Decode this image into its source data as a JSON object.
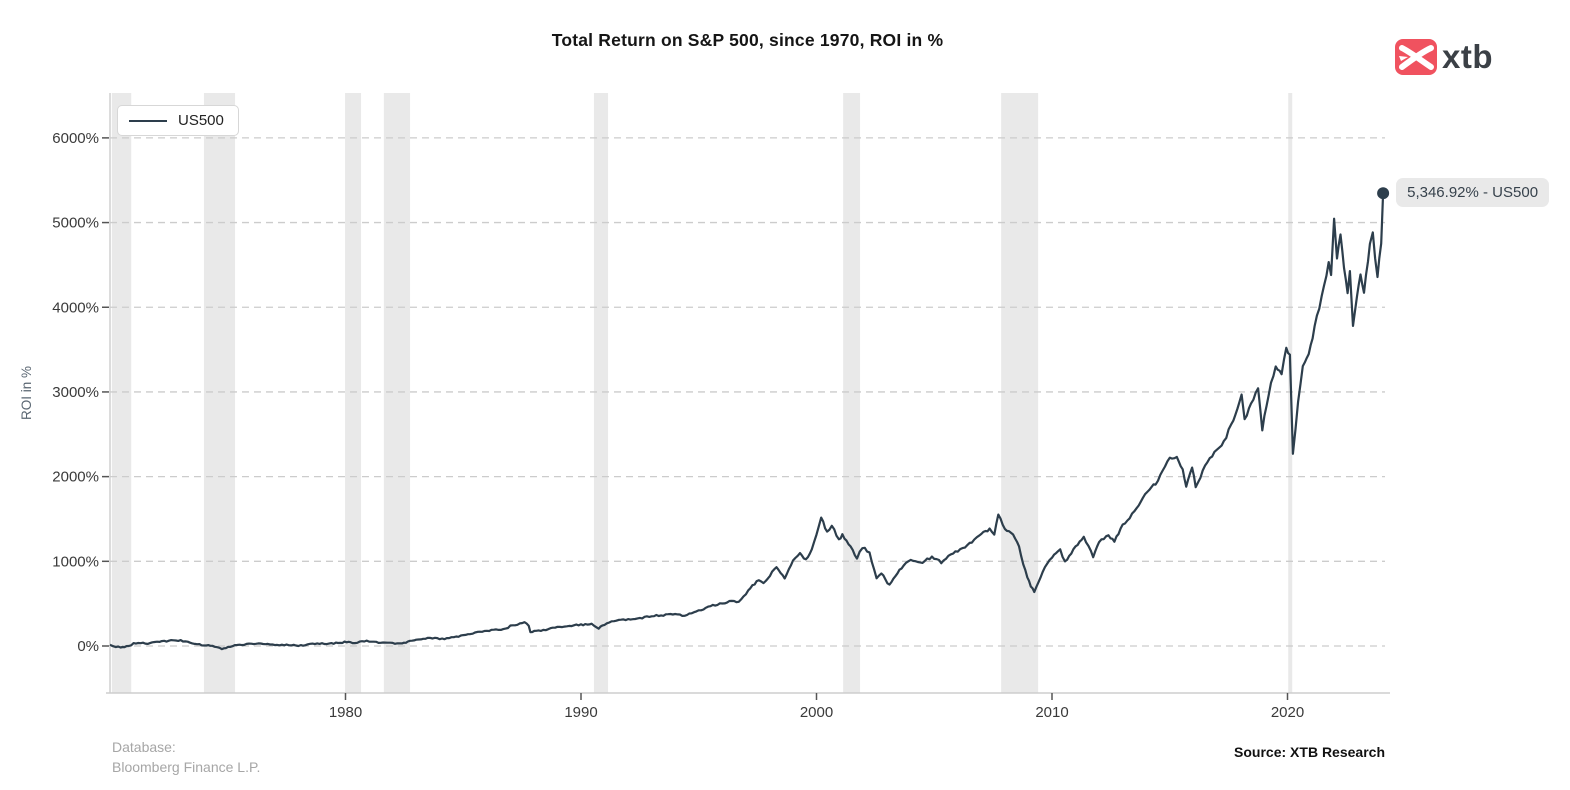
{
  "header": {
    "logo_text": "xtb"
  },
  "footer": {
    "database_line1": "Database:",
    "database_line2": "Bloomberg Finance L.P.",
    "source": "Source: XTB Research"
  },
  "colors": {
    "line": "#2d3e4c",
    "band": "#e9e9e9",
    "grid": "#cccccc",
    "axis_line": "#cdcdcd",
    "tick_mark": "#555555",
    "tick_text": "#3a3a3a",
    "pill_bg": "#e9e9e9",
    "pill_text": "#37424c",
    "logo_red": "#f0525f",
    "background": "#ffffff"
  },
  "chart_data": {
    "type": "line",
    "title": "Total Return on S&P 500, since 1970, ROI in %",
    "ylabel": "ROI in %",
    "xlabel": "",
    "grid": "dashed-horizontal",
    "legend_position": "top-left",
    "x_ticks": [
      1980,
      1990,
      2000,
      2010,
      2020
    ],
    "y_ticks": [
      0,
      1000,
      2000,
      3000,
      4000,
      5000,
      6000
    ],
    "y_tick_suffix": "%",
    "xlim": [
      1970,
      2024.14
    ],
    "ylim": [
      -555,
      6530
    ],
    "last_value": 5346.92,
    "last_value_label": "5,346.92% - US500",
    "recession_bands": [
      [
        1970.08,
        1970.9
      ],
      [
        1973.99,
        1975.31
      ],
      [
        1979.98,
        1980.66
      ],
      [
        1981.63,
        1982.74
      ],
      [
        1990.55,
        1991.15
      ],
      [
        2001.13,
        2001.85
      ],
      [
        2007.84,
        2009.41
      ],
      [
        2020.03,
        2020.2
      ]
    ],
    "series": [
      {
        "name": "US500",
        "points": [
          [
            1970.0,
            5
          ],
          [
            1970.15,
            -10
          ],
          [
            1970.45,
            -28
          ],
          [
            1970.7,
            -12
          ],
          [
            1971.0,
            28
          ],
          [
            1971.3,
            40
          ],
          [
            1971.6,
            30
          ],
          [
            1971.9,
            45
          ],
          [
            1972.3,
            50
          ],
          [
            1972.9,
            65
          ],
          [
            1973.2,
            50
          ],
          [
            1973.6,
            35
          ],
          [
            1974.0,
            20
          ],
          [
            1974.35,
            5
          ],
          [
            1974.75,
            -35
          ],
          [
            1975.1,
            -5
          ],
          [
            1975.5,
            15
          ],
          [
            1976.0,
            30
          ],
          [
            1976.5,
            38
          ],
          [
            1977.0,
            25
          ],
          [
            1977.5,
            20
          ],
          [
            1978.2,
            12
          ],
          [
            1978.6,
            22
          ],
          [
            1979.0,
            28
          ],
          [
            1979.5,
            38
          ],
          [
            1980.05,
            45
          ],
          [
            1980.3,
            32
          ],
          [
            1980.9,
            60
          ],
          [
            1981.3,
            55
          ],
          [
            1981.8,
            45
          ],
          [
            1982.4,
            30
          ],
          [
            1982.65,
            40
          ],
          [
            1983.0,
            70
          ],
          [
            1983.5,
            92
          ],
          [
            1984.1,
            80
          ],
          [
            1984.6,
            90
          ],
          [
            1985.0,
            115
          ],
          [
            1985.5,
            140
          ],
          [
            1986.0,
            175
          ],
          [
            1986.3,
            195
          ],
          [
            1986.7,
            190
          ],
          [
            1987.0,
            230
          ],
          [
            1987.6,
            272
          ],
          [
            1987.78,
            235
          ],
          [
            1987.85,
            160
          ],
          [
            1988.1,
            170
          ],
          [
            1988.5,
            185
          ],
          [
            1989.0,
            215
          ],
          [
            1989.5,
            248
          ],
          [
            1990.0,
            258
          ],
          [
            1990.45,
            268
          ],
          [
            1990.75,
            222
          ],
          [
            1991.0,
            262
          ],
          [
            1991.3,
            295
          ],
          [
            1992.0,
            318
          ],
          [
            1992.5,
            330
          ],
          [
            1993.0,
            348
          ],
          [
            1993.6,
            360
          ],
          [
            1994.1,
            372
          ],
          [
            1994.4,
            352
          ],
          [
            1995.0,
            412
          ],
          [
            1995.5,
            465
          ],
          [
            1996.0,
            490
          ],
          [
            1996.4,
            545
          ],
          [
            1996.7,
            530
          ],
          [
            1997.1,
            650
          ],
          [
            1997.55,
            790
          ],
          [
            1997.75,
            735
          ],
          [
            1998.3,
            935
          ],
          [
            1998.65,
            795
          ],
          [
            1999.0,
            1030
          ],
          [
            1999.3,
            1110
          ],
          [
            1999.55,
            1015
          ],
          [
            1999.8,
            1130
          ],
          [
            2000.2,
            1520
          ],
          [
            2000.45,
            1350
          ],
          [
            2000.65,
            1430
          ],
          [
            2000.95,
            1255
          ],
          [
            2001.1,
            1310
          ],
          [
            2001.45,
            1190
          ],
          [
            2001.72,
            1050
          ],
          [
            2001.95,
            1170
          ],
          [
            2002.25,
            1095
          ],
          [
            2002.55,
            790
          ],
          [
            2002.75,
            870
          ],
          [
            2003.1,
            730
          ],
          [
            2003.35,
            840
          ],
          [
            2003.7,
            960
          ],
          [
            2004.0,
            1020
          ],
          [
            2004.4,
            985
          ],
          [
            2004.9,
            1060
          ],
          [
            2005.3,
            1000
          ],
          [
            2005.8,
            1110
          ],
          [
            2006.3,
            1180
          ],
          [
            2006.6,
            1230
          ],
          [
            2007.0,
            1330
          ],
          [
            2007.35,
            1390
          ],
          [
            2007.55,
            1340
          ],
          [
            2007.72,
            1560
          ],
          [
            2008.0,
            1400
          ],
          [
            2008.35,
            1330
          ],
          [
            2008.6,
            1180
          ],
          [
            2008.78,
            950
          ],
          [
            2008.95,
            820
          ],
          [
            2009.1,
            700
          ],
          [
            2009.25,
            640
          ],
          [
            2009.6,
            880
          ],
          [
            2010.0,
            1060
          ],
          [
            2010.35,
            1150
          ],
          [
            2010.55,
            1010
          ],
          [
            2011.0,
            1190
          ],
          [
            2011.35,
            1280
          ],
          [
            2011.75,
            1050
          ],
          [
            2012.0,
            1230
          ],
          [
            2012.4,
            1290
          ],
          [
            2012.65,
            1240
          ],
          [
            2013.0,
            1420
          ],
          [
            2013.5,
            1580
          ],
          [
            2013.95,
            1790
          ],
          [
            2014.4,
            1920
          ],
          [
            2014.9,
            2200
          ],
          [
            2015.3,
            2240
          ],
          [
            2015.55,
            2080
          ],
          [
            2015.7,
            1900
          ],
          [
            2015.95,
            2140
          ],
          [
            2016.1,
            1880
          ],
          [
            2016.5,
            2160
          ],
          [
            2016.9,
            2300
          ],
          [
            2017.3,
            2450
          ],
          [
            2017.7,
            2680
          ],
          [
            2018.05,
            3000
          ],
          [
            2018.18,
            2690
          ],
          [
            2018.45,
            2860
          ],
          [
            2018.75,
            3060
          ],
          [
            2018.93,
            2550
          ],
          [
            2019.2,
            2950
          ],
          [
            2019.5,
            3280
          ],
          [
            2019.75,
            3230
          ],
          [
            2019.95,
            3530
          ],
          [
            2020.1,
            3440
          ],
          [
            2020.23,
            2300
          ],
          [
            2020.45,
            2900
          ],
          [
            2020.65,
            3340
          ],
          [
            2020.9,
            3480
          ],
          [
            2021.15,
            3800
          ],
          [
            2021.45,
            4160
          ],
          [
            2021.75,
            4550
          ],
          [
            2021.85,
            4420
          ],
          [
            2021.98,
            5070
          ],
          [
            2022.1,
            4600
          ],
          [
            2022.25,
            4880
          ],
          [
            2022.4,
            4450
          ],
          [
            2022.55,
            4180
          ],
          [
            2022.65,
            4440
          ],
          [
            2022.78,
            3760
          ],
          [
            2022.95,
            4120
          ],
          [
            2023.1,
            4330
          ],
          [
            2023.25,
            4150
          ],
          [
            2023.5,
            4750
          ],
          [
            2023.62,
            4860
          ],
          [
            2023.82,
            4330
          ],
          [
            2023.98,
            4780
          ],
          [
            2024.06,
            5346.92
          ]
        ]
      }
    ]
  }
}
